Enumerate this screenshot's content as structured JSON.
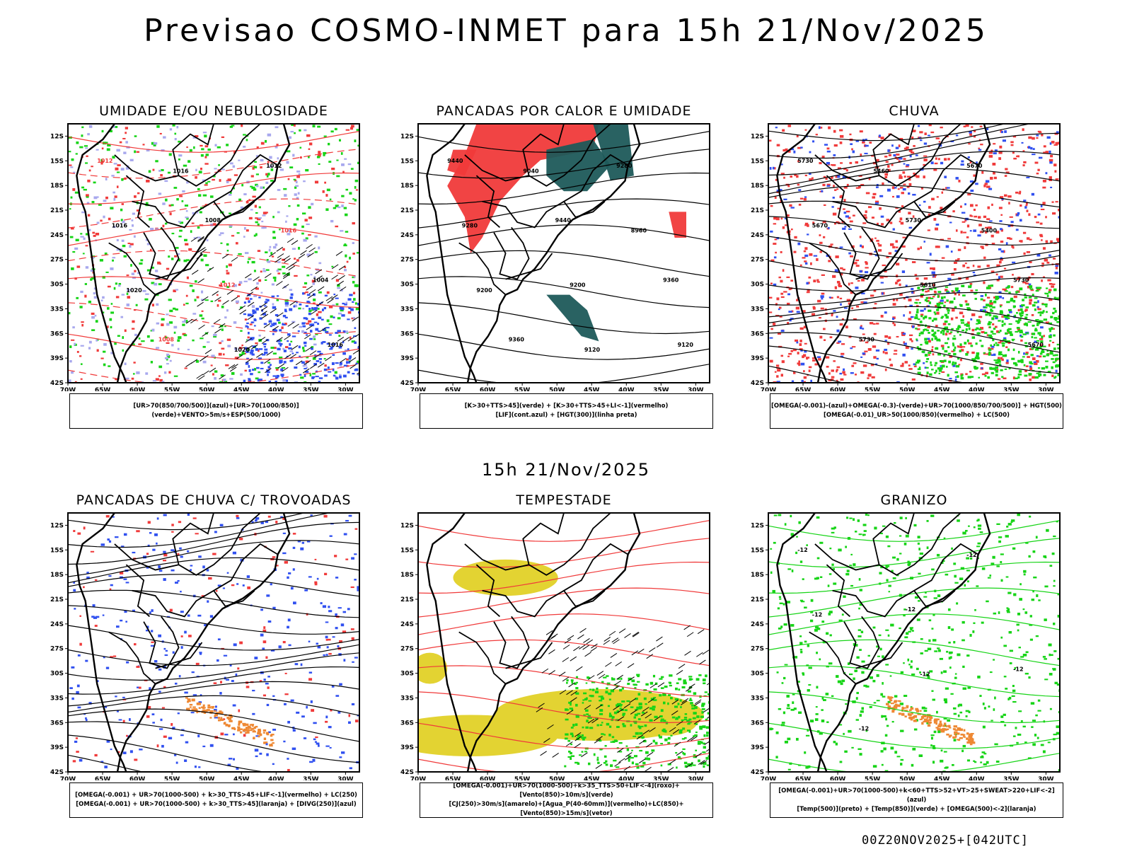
{
  "title": "Previsao COSMO-INMET  para 15h 21/Nov/2025",
  "mid_title": "15h 21/Nov/2025",
  "footer": "00Z20NOV2025+[042UTC]",
  "colors": {
    "red": "#f03a3a",
    "green": "#17d417",
    "blue": "#3050f0",
    "lavender": "#a8a8ee",
    "teal": "#1e5a5a",
    "yellow": "#e3d332",
    "orange": "#ee8833",
    "black": "#000000"
  },
  "chart_data": [
    {
      "type": "heatmap",
      "title": "UMIDADE E/OU NEBULOSIDADE",
      "legend_lines": [
        "[UR>70(850/700/500)](azul)+[UR>70(1000/850)](verde)+VENTO>5m/s+ESP(500/1000)"
      ],
      "lat_ticks": [
        "12S",
        "15S",
        "18S",
        "21S",
        "24S",
        "27S",
        "30S",
        "33S",
        "36S",
        "39S",
        "42S"
      ],
      "lon_ticks": [
        "70W",
        "65W",
        "60W",
        "55W",
        "50W",
        "45W",
        "40W",
        "35W",
        "30W"
      ],
      "xlim": [
        -70,
        -28
      ],
      "ylim": [
        -42,
        -10.5
      ],
      "contour_labels": [
        "1012",
        "1008",
        "1004",
        "1008",
        "1012",
        "1016",
        "1012",
        "1016",
        "1016",
        "1016",
        "1020",
        "1020"
      ]
    },
    {
      "type": "heatmap",
      "title": "PANCADAS POR CALOR E UMIDADE",
      "legend_lines": [
        "[K>30+TTS>45](verde) + [K>30+TTS>45+LI<-1](vermelho)",
        "[LIF](cont.azul) + [HGT(300)](linha preta)"
      ],
      "lat_ticks": [
        "12S",
        "15S",
        "18S",
        "21S",
        "24S",
        "27S",
        "30S",
        "33S",
        "36S",
        "39S",
        "42S"
      ],
      "lon_ticks": [
        "70W",
        "65W",
        "60W",
        "55W",
        "50W",
        "45W",
        "40W",
        "35W",
        "30W"
      ],
      "xlim": [
        -70,
        -28
      ],
      "ylim": [
        -42,
        -10.5
      ],
      "contour_labels": [
        "9440",
        "9440",
        "9360",
        "9360",
        "9280",
        "9280",
        "9200",
        "9120",
        "9040",
        "8960",
        "9200",
        "9120"
      ]
    },
    {
      "type": "heatmap",
      "title": "CHUVA",
      "legend_lines": [
        "[OMEGA(-0.001)-(azul)+OMEGA(-0.3)-(verde)+UR>70(1000/850/700/500)] + HGT(500)",
        "[OMEGA(-0.01)_UR>50(1000/850)(vermelho) + LC(500)"
      ],
      "lat_ticks": [
        "12S",
        "15S",
        "18S",
        "21S",
        "24S",
        "27S",
        "30S",
        "33S",
        "36S",
        "39S",
        "42S"
      ],
      "lon_ticks": [
        "70W",
        "65W",
        "60W",
        "55W",
        "50W",
        "45W",
        "40W",
        "35W",
        "30W"
      ],
      "xlim": [
        -70,
        -28
      ],
      "ylim": [
        -42,
        -10.5
      ],
      "contour_labels": [
        "5730",
        "5730",
        "5730",
        "5730",
        "5670",
        "5670",
        "5610",
        "5670",
        "5460",
        "5400"
      ]
    },
    {
      "type": "heatmap",
      "title": "PANCADAS DE CHUVA C/ TROVOADAS",
      "legend_lines": [
        "[OMEGA(-0.001) + UR>70(1000-500) + k>30_TTS>45+LIF<-1](vermelho) + LC(250)",
        "[OMEGA(-0.001) + UR>70(1000-500) + k>30_TTS>45](laranja) + [DIVG(250)](azul)"
      ],
      "lat_ticks": [
        "12S",
        "15S",
        "18S",
        "21S",
        "24S",
        "27S",
        "30S",
        "33S",
        "36S",
        "39S",
        "42S"
      ],
      "lon_ticks": [
        "70W",
        "65W",
        "60W",
        "55W",
        "50W",
        "45W",
        "40W",
        "35W",
        "30W"
      ],
      "xlim": [
        -70,
        -28
      ],
      "ylim": [
        -42,
        -10.5
      ]
    },
    {
      "type": "heatmap",
      "title": "TEMPESTADE",
      "legend_lines": [
        "[OMEGA(-0.001)+UR>70(1000-500)+k>35_TTS>50+LIF<-4](roxo)+[Vento(850)>10m/s](verde)",
        "[CJ(250)>30m/s](amarelo)+[Agua_P(40-60mm)](vermelho)+LC(850)+[Vento(850)>15m/s](vetor)"
      ],
      "lat_ticks": [
        "12S",
        "15S",
        "18S",
        "21S",
        "24S",
        "27S",
        "30S",
        "33S",
        "36S",
        "39S",
        "42S"
      ],
      "lon_ticks": [
        "70W",
        "65W",
        "60W",
        "55W",
        "50W",
        "45W",
        "40W",
        "35W",
        "30W"
      ],
      "xlim": [
        -70,
        -28
      ],
      "ylim": [
        -42,
        -10.5
      ]
    },
    {
      "type": "heatmap",
      "title": "GRANIZO",
      "legend_lines": [
        "[OMEGA(-0.001)+UR>70(1000-500)+k<60+TTS>52+VT>25+SWEAT>220+LIF<-2](azul)",
        "[Temp(500)](preto) + [Temp(850)](verde) + [OMEGA(500)<-2](laranja)"
      ],
      "lat_ticks": [
        "12S",
        "15S",
        "18S",
        "21S",
        "24S",
        "27S",
        "30S",
        "33S",
        "36S",
        "39S",
        "42S"
      ],
      "lon_ticks": [
        "70W",
        "65W",
        "60W",
        "55W",
        "50W",
        "45W",
        "40W",
        "35W",
        "30W"
      ],
      "xlim": [
        -70,
        -28
      ],
      "ylim": [
        -42,
        -10.5
      ],
      "contour_labels": [
        "-12",
        "-12",
        "-12",
        "-12",
        "-12",
        "-12",
        "-12"
      ]
    }
  ]
}
